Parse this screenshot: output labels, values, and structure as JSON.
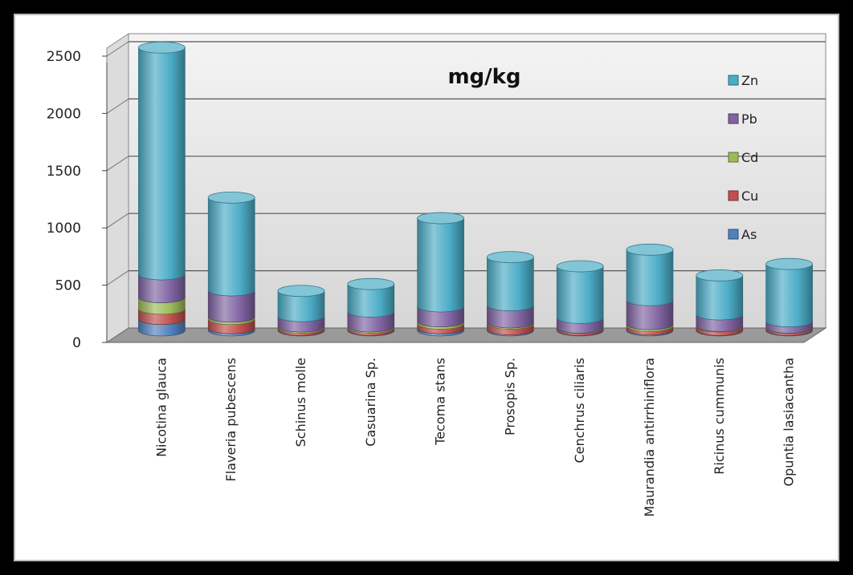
{
  "chart_data": {
    "type": "bar",
    "subtype": "stacked-3d-cylinder",
    "title": "mg/kg",
    "xlabel": "",
    "ylabel": "",
    "ylim": [
      0,
      2500
    ],
    "yticks": [
      0,
      500,
      1000,
      1500,
      2000,
      2500
    ],
    "grid": true,
    "legend_position": "right",
    "categories": [
      "Nicotina glauca",
      "Flaveria pubescens",
      "Schinus molle",
      "Casuarina Sp.",
      "Tecoma stans",
      "Prosopis Sp.",
      "Cenchrus ciliaris",
      "Maurandia antirrhiniflora",
      "Ricinus cummunis",
      "Opuntia lasiacantha"
    ],
    "series": [
      {
        "name": "As",
        "color": "#4f81bd",
        "values": [
          100,
          20,
          5,
          5,
          20,
          10,
          5,
          10,
          5,
          5
        ]
      },
      {
        "name": "Cu",
        "color": "#c0504d",
        "values": [
          90,
          80,
          20,
          20,
          40,
          50,
          15,
          30,
          30,
          15
        ]
      },
      {
        "name": "Cd",
        "color": "#9bbb59",
        "values": [
          100,
          20,
          10,
          10,
          20,
          10,
          5,
          15,
          5,
          5
        ]
      },
      {
        "name": "Pb",
        "color": "#8064a2",
        "values": [
          200,
          230,
          90,
          130,
          130,
          150,
          85,
          210,
          100,
          55
        ]
      },
      {
        "name": "Zn",
        "color": "#4bacc6",
        "values": [
          1980,
          810,
          220,
          240,
          770,
          420,
          450,
          440,
          340,
          500
        ]
      }
    ]
  }
}
